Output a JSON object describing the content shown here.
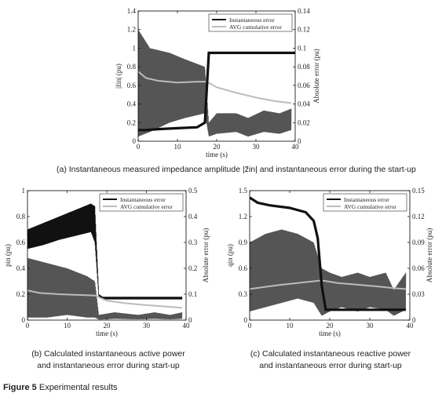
{
  "figure": {
    "label_bold": "Figure 5",
    "label_rest": " Experimental results"
  },
  "captions": {
    "a": "(a) Instantaneous measured impedance amplitude |z̃in| and instantaneous error during the start-up",
    "b": "(b) Calculated instantaneous active power and instantaneous error during start-up",
    "c": "(c) Calculated instantaneous reactive power and instantaneous error during start-up"
  },
  "chart_data": [
    {
      "type": "line",
      "id": "a",
      "ylabel": "|z̃in| (pu)",
      "ylabel_right": "Absolute error (pu)",
      "xlabel": "time (s)",
      "xlim": [
        0,
        40
      ],
      "ylim": [
        0,
        1.4
      ],
      "ylim_right": [
        0,
        0.14
      ],
      "xticks": [
        "0",
        "10",
        "20",
        "30",
        "40"
      ],
      "yticks": [
        "0",
        "0.2",
        "0.4",
        "0.6",
        "0.8",
        "1",
        "1.2",
        "1.4"
      ],
      "yticks_right": [
        "0",
        "0.02",
        "0.04",
        "0.06",
        "0.08",
        "0.1",
        "0.12",
        "0.14"
      ],
      "legend": [
        "Instantaneous error",
        "AVG cumulative error"
      ],
      "legend_position": "top-right",
      "colors": {
        "measured": "#111111",
        "instantaneous_error": "#555555",
        "avg_error": "#bbbbbb"
      },
      "series": [
        {
          "name": "",
          "axis": "left",
          "role": "measured",
          "x": [
            0,
            2,
            5,
            10,
            15,
            17,
            18,
            19,
            25,
            30,
            35,
            40
          ],
          "y": [
            0.12,
            0.12,
            0.13,
            0.14,
            0.15,
            0.2,
            0.95,
            0.95,
            0.95,
            0.95,
            0.95,
            0.95
          ]
        },
        {
          "name": "Instantaneous error",
          "axis": "right",
          "role": "band",
          "x": [
            0,
            3,
            8,
            12,
            17,
            18,
            20,
            25,
            28,
            32,
            36,
            39
          ],
          "upper": [
            0.12,
            0.1,
            0.095,
            0.088,
            0.08,
            0.02,
            0.03,
            0.03,
            0.025,
            0.033,
            0.03,
            0.035
          ],
          "lower": [
            0.005,
            0.01,
            0.02,
            0.025,
            0.03,
            0.005,
            0.008,
            0.01,
            0.005,
            0.01,
            0.008,
            0.012
          ]
        },
        {
          "name": "AVG cumulative error",
          "axis": "right",
          "role": "avg",
          "x": [
            0,
            2,
            5,
            10,
            15,
            17.5,
            20,
            25,
            30,
            35,
            39
          ],
          "y": [
            0.075,
            0.068,
            0.065,
            0.063,
            0.064,
            0.064,
            0.058,
            0.052,
            0.047,
            0.043,
            0.041
          ]
        }
      ]
    },
    {
      "type": "line",
      "id": "b",
      "ylabel": "pin (pu)",
      "ylabel_right": "Absolute error (pu)",
      "xlabel": "time (s)",
      "xlim": [
        0,
        40
      ],
      "ylim": [
        0,
        1
      ],
      "ylim_right": [
        0,
        0.5
      ],
      "xticks": [
        "0",
        "10",
        "20",
        "30",
        "40"
      ],
      "yticks": [
        "0",
        "0.2",
        "0.4",
        "0.6",
        "0.8",
        "1"
      ],
      "yticks_right": [
        "0",
        "0.1",
        "0.2",
        "0.3",
        "0.4",
        "0.5"
      ],
      "legend": [
        "Instantaneous error",
        "AVG cumulative error"
      ],
      "legend_position": "top-right",
      "colors": {
        "measured": "#111111",
        "instantaneous_error": "#555555",
        "avg_error": "#bbbbbb"
      },
      "series": [
        {
          "name": "",
          "axis": "left",
          "role": "measured_band",
          "x": [
            0,
            4,
            8,
            12,
            16,
            17,
            18,
            19,
            25,
            30,
            35,
            39
          ],
          "upper": [
            0.7,
            0.75,
            0.8,
            0.85,
            0.9,
            0.88,
            0.2,
            0.18,
            0.18,
            0.18,
            0.18,
            0.18
          ],
          "lower": [
            0.55,
            0.58,
            0.62,
            0.65,
            0.68,
            0.6,
            0.17,
            0.16,
            0.16,
            0.16,
            0.16,
            0.16
          ]
        },
        {
          "name": "Instantaneous error",
          "axis": "right",
          "role": "band",
          "x": [
            0,
            5,
            10,
            15,
            17,
            18,
            22,
            28,
            32,
            36,
            39
          ],
          "upper": [
            0.24,
            0.22,
            0.2,
            0.17,
            0.15,
            0.02,
            0.03,
            0.02,
            0.03,
            0.02,
            0.03
          ],
          "lower": [
            0.01,
            0.01,
            0.02,
            0.01,
            0.01,
            0.002,
            0.005,
            0.003,
            0.005,
            0.003,
            0.005
          ]
        },
        {
          "name": "AVG cumulative error",
          "axis": "right",
          "role": "avg",
          "x": [
            0,
            3,
            8,
            12,
            17,
            20,
            25,
            30,
            35,
            39
          ],
          "y": [
            0.115,
            0.105,
            0.1,
            0.098,
            0.095,
            0.075,
            0.065,
            0.058,
            0.052,
            0.048
          ]
        }
      ]
    },
    {
      "type": "line",
      "id": "c",
      "ylabel": "qin (pu)",
      "ylabel_right": "Absolute error (pu)",
      "xlabel": "time (s)",
      "xlim": [
        0,
        40
      ],
      "ylim": [
        0,
        1.5
      ],
      "ylim_right": [
        0,
        0.15
      ],
      "xticks": [
        "0",
        "10",
        "20",
        "30",
        "40"
      ],
      "yticks": [
        "0",
        "0.3",
        "0.6",
        "0.9",
        "1.2",
        "1.5"
      ],
      "yticks_right": [
        "0",
        "0.03",
        "0.06",
        "0.09",
        "0.12",
        "0.15"
      ],
      "legend": [
        "Instantaneous error",
        "AVG cumulative error"
      ],
      "legend_position": "top-right",
      "colors": {
        "measured": "#111111",
        "instantaneous_error": "#555555",
        "avg_error": "#bbbbbb"
      },
      "series": [
        {
          "name": "",
          "axis": "left",
          "role": "measured",
          "x": [
            0,
            2,
            5,
            10,
            14,
            16,
            17,
            18,
            19,
            25,
            30,
            35,
            39
          ],
          "y": [
            1.42,
            1.36,
            1.33,
            1.3,
            1.25,
            1.15,
            0.95,
            0.4,
            0.12,
            0.12,
            0.12,
            0.12,
            0.12
          ]
        },
        {
          "name": "Instantaneous error",
          "axis": "right",
          "role": "band",
          "x": [
            0,
            4,
            8,
            12,
            16,
            18,
            20,
            23,
            27,
            30,
            34,
            36,
            39
          ],
          "upper": [
            0.09,
            0.1,
            0.105,
            0.1,
            0.09,
            0.06,
            0.055,
            0.05,
            0.055,
            0.05,
            0.055,
            0.035,
            0.055
          ],
          "lower": [
            0.01,
            0.015,
            0.02,
            0.025,
            0.02,
            0.005,
            0.01,
            0.015,
            0.01,
            0.015,
            0.012,
            0.005,
            0.012
          ]
        },
        {
          "name": "AVG cumulative error",
          "axis": "right",
          "role": "avg",
          "x": [
            0,
            3,
            8,
            12,
            16,
            18,
            22,
            27,
            32,
            36,
            39
          ],
          "y": [
            0.036,
            0.038,
            0.041,
            0.043,
            0.045,
            0.046,
            0.043,
            0.041,
            0.039,
            0.037,
            0.036
          ]
        }
      ]
    }
  ]
}
